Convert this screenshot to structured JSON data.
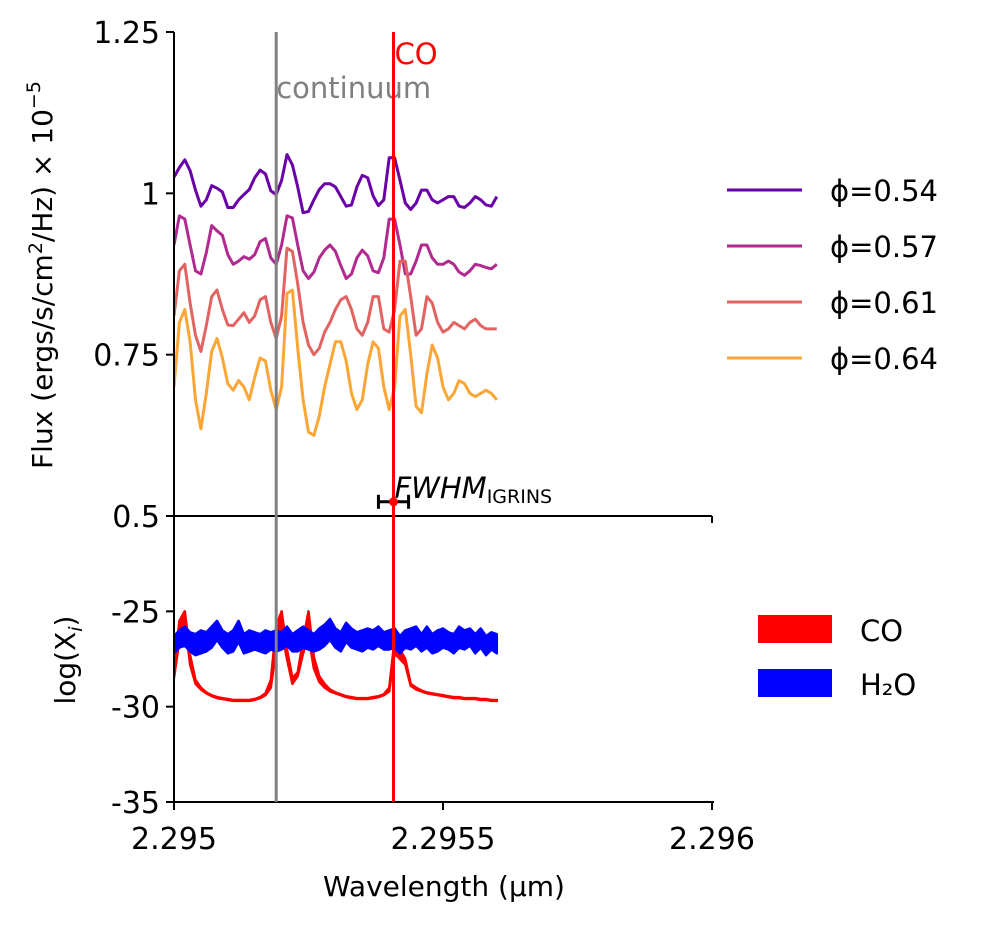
{
  "chart_data": [
    {
      "type": "line",
      "panel": "top",
      "xlabel": "",
      "ylabel_parts": {
        "main": "Flux (ergs/s/cm",
        "sup": "2",
        "mid": "/Hz) × 10",
        "exp": "−5"
      },
      "xlim": [
        2.295,
        2.296
      ],
      "ylim": [
        0.5,
        1.25
      ],
      "yticks": [
        0.5,
        0.75,
        1,
        1.25
      ],
      "ytick_labels": [
        "0.5",
        "0.75",
        "1",
        "1.25"
      ],
      "x": [
        2.295,
        2.29501,
        2.29502,
        2.29503,
        2.29504,
        2.29505,
        2.29506,
        2.29507,
        2.29508,
        2.29509,
        2.2951,
        2.29511,
        2.29512,
        2.29513,
        2.29514,
        2.29515,
        2.29516,
        2.29517,
        2.29518,
        2.29519,
        2.2952,
        2.29521,
        2.29522,
        2.29523,
        2.29524,
        2.29525,
        2.29526,
        2.29527,
        2.29528,
        2.29529,
        2.2953,
        2.29531,
        2.29532,
        2.29533,
        2.29534,
        2.29535,
        2.29536,
        2.29537,
        2.29538,
        2.29539,
        2.2954,
        2.29541,
        2.29542,
        2.29543,
        2.29544,
        2.29545,
        2.29546,
        2.29547,
        2.29548,
        2.29549,
        2.2955,
        2.29551,
        2.29552,
        2.29553,
        2.29554,
        2.29555,
        2.29556,
        2.29557,
        2.29558,
        2.29559,
        2.2956
      ],
      "series": [
        {
          "name": "ϕ=0.54",
          "color": "#6a00a8",
          "values": [
            1.025,
            1.04,
            1.052,
            1.035,
            1.005,
            0.98,
            0.99,
            1.012,
            1.008,
            1.002,
            0.978,
            0.978,
            0.99,
            0.998,
            1.006,
            1.024,
            1.036,
            1.03,
            1.004,
            0.998,
            1.02,
            1.06,
            1.044,
            1.01,
            0.97,
            0.972,
            0.99,
            1.006,
            1.015,
            1.015,
            1.01,
            0.995,
            0.98,
            0.982,
            1.01,
            1.028,
            1.024,
            0.996,
            0.981,
            0.99,
            1.055,
            1.055,
            1.02,
            0.985,
            0.975,
            0.985,
            1.005,
            1.005,
            0.99,
            0.985,
            0.99,
            0.995,
            0.995,
            0.98,
            0.978,
            0.985,
            0.995,
            0.99,
            0.982,
            0.98,
            0.995
          ]
        },
        {
          "name": "ϕ=0.57",
          "color": "#b12a90",
          "values": [
            0.92,
            0.965,
            0.96,
            0.92,
            0.88,
            0.875,
            0.908,
            0.95,
            0.942,
            0.935,
            0.905,
            0.89,
            0.895,
            0.902,
            0.898,
            0.905,
            0.925,
            0.93,
            0.9,
            0.89,
            0.92,
            0.965,
            0.962,
            0.92,
            0.88,
            0.868,
            0.878,
            0.9,
            0.912,
            0.92,
            0.91,
            0.888,
            0.868,
            0.875,
            0.9,
            0.912,
            0.903,
            0.88,
            0.877,
            0.9,
            0.96,
            0.96,
            0.92,
            0.875,
            0.875,
            0.895,
            0.92,
            0.92,
            0.9,
            0.89,
            0.89,
            0.895,
            0.89,
            0.878,
            0.873,
            0.88,
            0.89,
            0.888,
            0.885,
            0.883,
            0.89
          ]
        },
        {
          "name": "ϕ=0.61",
          "color": "#e16462",
          "values": [
            0.81,
            0.88,
            0.89,
            0.83,
            0.78,
            0.755,
            0.795,
            0.84,
            0.85,
            0.82,
            0.796,
            0.795,
            0.805,
            0.815,
            0.8,
            0.81,
            0.835,
            0.84,
            0.8,
            0.775,
            0.81,
            0.915,
            0.91,
            0.86,
            0.8,
            0.765,
            0.75,
            0.76,
            0.785,
            0.8,
            0.82,
            0.835,
            0.84,
            0.82,
            0.79,
            0.78,
            0.8,
            0.84,
            0.84,
            0.79,
            0.785,
            0.82,
            0.895,
            0.895,
            0.84,
            0.78,
            0.79,
            0.84,
            0.83,
            0.8,
            0.785,
            0.79,
            0.8,
            0.795,
            0.79,
            0.8,
            0.805,
            0.795,
            0.79,
            0.79,
            0.79
          ]
        },
        {
          "name": "ϕ=0.64",
          "color": "#fca636",
          "values": [
            0.7,
            0.8,
            0.82,
            0.77,
            0.68,
            0.635,
            0.69,
            0.755,
            0.775,
            0.745,
            0.705,
            0.695,
            0.71,
            0.7,
            0.68,
            0.715,
            0.745,
            0.74,
            0.695,
            0.665,
            0.7,
            0.845,
            0.85,
            0.76,
            0.68,
            0.63,
            0.625,
            0.655,
            0.7,
            0.735,
            0.77,
            0.77,
            0.74,
            0.69,
            0.665,
            0.68,
            0.735,
            0.77,
            0.76,
            0.7,
            0.665,
            0.7,
            0.81,
            0.82,
            0.75,
            0.67,
            0.66,
            0.72,
            0.765,
            0.745,
            0.7,
            0.68,
            0.69,
            0.71,
            0.705,
            0.69,
            0.685,
            0.69,
            0.695,
            0.69,
            0.68
          ]
        }
      ],
      "vlines": [
        {
          "x": 2.29519,
          "label": "continuum",
          "color": "#808080"
        },
        {
          "x": 2.295408,
          "label": "CO",
          "color": "#ff0000"
        }
      ],
      "errorbar": {
        "x": 2.295408,
        "y": 0.522,
        "xerr": 2.8e-05,
        "label_main": "FWHM",
        "label_sub": "IGRINS"
      },
      "legend_position": "right"
    },
    {
      "type": "area",
      "panel": "bottom",
      "xlabel": "Wavelength (µm)",
      "ylabel_parts": {
        "main": "log(X",
        "sub": "i",
        "end": ")"
      },
      "xlim": [
        2.295,
        2.296
      ],
      "ylim": [
        -35,
        -20
      ],
      "yticks": [
        -25,
        -30,
        -35
      ],
      "ytick_labels": [
        "-25",
        "-30",
        "-35"
      ],
      "xticks": [
        2.295,
        2.2955,
        2.296
      ],
      "xtick_labels": [
        "2.295",
        "2.2955",
        "2.296"
      ],
      "x": [
        2.295,
        2.29501,
        2.29502,
        2.29503,
        2.29504,
        2.29505,
        2.29506,
        2.29507,
        2.29508,
        2.29509,
        2.2951,
        2.29511,
        2.29512,
        2.29513,
        2.29514,
        2.29515,
        2.29516,
        2.29517,
        2.29518,
        2.29519,
        2.2952,
        2.29521,
        2.29522,
        2.29523,
        2.29524,
        2.29525,
        2.29526,
        2.29527,
        2.29528,
        2.29529,
        2.2953,
        2.29531,
        2.29532,
        2.29533,
        2.29534,
        2.29535,
        2.29536,
        2.29537,
        2.29538,
        2.29539,
        2.2954,
        2.29541,
        2.29542,
        2.29543,
        2.29544,
        2.29545,
        2.29546,
        2.29547,
        2.29548,
        2.29549,
        2.2955,
        2.29551,
        2.29552,
        2.29553,
        2.29554,
        2.29555,
        2.29556,
        2.29557,
        2.29558,
        2.29559,
        2.2956
      ],
      "series": [
        {
          "name": "CO",
          "color": "#ff0000",
          "lower": [
            -28.5,
            -26.5,
            -25.5,
            -27.8,
            -28.8,
            -29.1,
            -29.3,
            -29.45,
            -29.55,
            -29.6,
            -29.65,
            -29.7,
            -29.7,
            -29.7,
            -29.7,
            -29.65,
            -29.55,
            -29.4,
            -29.0,
            -27.0,
            -26.0,
            -27.5,
            -28.8,
            -28.4,
            -27.2,
            -26.3,
            -28.0,
            -28.7,
            -29.0,
            -29.2,
            -29.3,
            -29.4,
            -29.5,
            -29.55,
            -29.6,
            -29.6,
            -29.6,
            -29.55,
            -29.5,
            -29.4,
            -29.2,
            -27.2,
            -27.5,
            -27.8,
            -28.9,
            -29.1,
            -29.2,
            -29.3,
            -29.35,
            -29.4,
            -29.45,
            -29.5,
            -29.55,
            -29.55,
            -29.6,
            -29.6,
            -29.6,
            -29.65,
            -29.65,
            -29.7,
            -29.7
          ],
          "upper": [
            -28.2,
            -25.5,
            -25.0,
            -27.3,
            -28.6,
            -29.0,
            -29.25,
            -29.4,
            -29.5,
            -29.55,
            -29.6,
            -29.65,
            -29.65,
            -29.65,
            -29.65,
            -29.6,
            -29.5,
            -29.3,
            -28.6,
            -25.8,
            -25.0,
            -27.0,
            -28.5,
            -28.2,
            -26.5,
            -25.0,
            -27.4,
            -28.4,
            -28.8,
            -29.1,
            -29.25,
            -29.35,
            -29.45,
            -29.5,
            -29.55,
            -29.55,
            -29.55,
            -29.5,
            -29.45,
            -29.35,
            -29.0,
            -26.5,
            -27.0,
            -27.5,
            -28.8,
            -29.0,
            -29.15,
            -29.25,
            -29.3,
            -29.35,
            -29.4,
            -29.45,
            -29.5,
            -29.5,
            -29.55,
            -29.55,
            -29.55,
            -29.6,
            -29.6,
            -29.65,
            -29.65
          ]
        },
        {
          "name": "H₂O",
          "color": "#0000ff",
          "lower": [
            -27.2,
            -26.9,
            -26.8,
            -27.1,
            -27.3,
            -27.2,
            -27.1,
            -26.9,
            -26.5,
            -26.9,
            -27.2,
            -27.1,
            -26.6,
            -27.2,
            -27.1,
            -27.0,
            -27.1,
            -27.2,
            -27.0,
            -27.1,
            -27.0,
            -26.8,
            -27.1,
            -27.1,
            -26.9,
            -27.0,
            -27.1,
            -27.0,
            -26.8,
            -26.5,
            -26.9,
            -27.1,
            -26.6,
            -26.9,
            -27.0,
            -27.1,
            -26.9,
            -27.0,
            -26.8,
            -27.0,
            -27.0,
            -26.9,
            -27.2,
            -26.9,
            -27.0,
            -26.8,
            -27.1,
            -26.9,
            -27.2,
            -27.1,
            -26.9,
            -27.0,
            -27.2,
            -26.9,
            -27.0,
            -26.8,
            -27.2,
            -26.9,
            -27.3,
            -27.0,
            -27.2
          ],
          "upper": [
            -26.3,
            -26.0,
            -25.8,
            -26.1,
            -26.2,
            -26.0,
            -26.1,
            -25.8,
            -25.5,
            -26.0,
            -26.2,
            -26.0,
            -25.5,
            -26.2,
            -26.0,
            -26.1,
            -26.2,
            -26.0,
            -26.1,
            -26.0,
            -26.1,
            -25.8,
            -26.2,
            -26.0,
            -25.8,
            -26.0,
            -26.2,
            -25.9,
            -25.7,
            -25.4,
            -25.9,
            -26.1,
            -25.6,
            -25.9,
            -26.1,
            -26.0,
            -25.9,
            -26.0,
            -25.8,
            -26.1,
            -26.0,
            -25.9,
            -26.3,
            -26.0,
            -25.9,
            -25.8,
            -26.2,
            -25.8,
            -26.2,
            -26.0,
            -25.9,
            -26.1,
            -26.2,
            -25.8,
            -26.0,
            -25.9,
            -26.2,
            -25.9,
            -26.3,
            -26.1,
            -26.2
          ]
        }
      ],
      "legend_position": "right"
    }
  ]
}
